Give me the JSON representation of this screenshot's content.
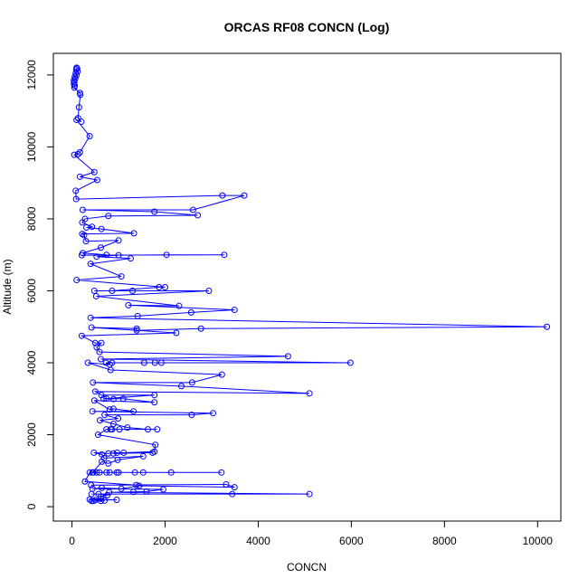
{
  "chart_data": {
    "type": "line",
    "title": "ORCAS RF08 CONCN (Log)",
    "xlabel": "CONCN",
    "ylabel": "Altitude (m)",
    "xlim": [
      -400,
      10500
    ],
    "ylim": [
      -400,
      12600
    ],
    "x_ticks": [
      0,
      2000,
      4000,
      6000,
      8000,
      10000
    ],
    "y_ticks": [
      0,
      2000,
      4000,
      6000,
      8000,
      10000,
      12000
    ],
    "grid": false,
    "legend": "none",
    "markers": "open circles",
    "series_color": "#0000ff",
    "series": [
      {
        "points": [
          [
            100,
            12200
          ],
          [
            110,
            12180
          ],
          [
            90,
            12150
          ],
          [
            120,
            12100
          ],
          [
            80,
            12050
          ],
          [
            100,
            12000
          ],
          [
            60,
            11950
          ],
          [
            70,
            11900
          ],
          [
            40,
            11850
          ],
          [
            50,
            11800
          ],
          [
            40,
            11750
          ],
          [
            60,
            11700
          ],
          [
            50,
            11650
          ],
          [
            170,
            11500
          ],
          [
            180,
            11450
          ],
          [
            150,
            11100
          ],
          [
            130,
            10800
          ],
          [
            200,
            10700
          ],
          [
            100,
            10750
          ],
          [
            380,
            10300
          ],
          [
            170,
            9850
          ],
          [
            130,
            9800
          ],
          [
            50,
            9780
          ],
          [
            480,
            9300
          ],
          [
            170,
            9170
          ],
          [
            540,
            9080
          ],
          [
            80,
            8780
          ],
          [
            90,
            8550
          ],
          [
            3230,
            8650
          ],
          [
            3700,
            8650
          ],
          [
            2600,
            8250
          ],
          [
            230,
            8250
          ],
          [
            1770,
            8200
          ],
          [
            2700,
            8100
          ],
          [
            780,
            8080
          ],
          [
            280,
            8000
          ],
          [
            220,
            7900
          ],
          [
            430,
            7780
          ],
          [
            310,
            7760
          ],
          [
            630,
            7720
          ],
          [
            1330,
            7600
          ],
          [
            220,
            7580
          ],
          [
            260,
            7550
          ],
          [
            300,
            7380
          ],
          [
            1000,
            7400
          ],
          [
            620,
            7200
          ],
          [
            230,
            7050
          ],
          [
            740,
            7000
          ],
          [
            210,
            6990
          ],
          [
            3270,
            7000
          ],
          [
            2030,
            7000
          ],
          [
            1000,
            6990
          ],
          [
            530,
            6950
          ],
          [
            1260,
            6900
          ],
          [
            400,
            6750
          ],
          [
            1060,
            6400
          ],
          [
            100,
            6300
          ],
          [
            2000,
            6100
          ],
          [
            1870,
            6100
          ],
          [
            860,
            6000
          ],
          [
            480,
            6000
          ],
          [
            1300,
            6000
          ],
          [
            2940,
            6000
          ],
          [
            520,
            5850
          ],
          [
            2300,
            5580
          ],
          [
            1210,
            5600
          ],
          [
            3490,
            5470
          ],
          [
            2560,
            5400
          ],
          [
            1410,
            5300
          ],
          [
            400,
            5250
          ],
          [
            10200,
            5000
          ],
          [
            2770,
            4950
          ],
          [
            1390,
            4900
          ],
          [
            1390,
            4950
          ],
          [
            420,
            4980
          ],
          [
            2240,
            4830
          ],
          [
            210,
            4750
          ],
          [
            500,
            4550
          ],
          [
            630,
            4550
          ],
          [
            530,
            4430
          ],
          [
            590,
            4300
          ],
          [
            4640,
            4180
          ],
          [
            620,
            4100
          ],
          [
            5980,
            4000
          ],
          [
            1920,
            4000
          ],
          [
            1550,
            4000
          ],
          [
            1780,
            4000
          ],
          [
            860,
            4000
          ],
          [
            730,
            4000
          ],
          [
            810,
            3950
          ],
          [
            340,
            4000
          ],
          [
            830,
            3800
          ],
          [
            3220,
            3670
          ],
          [
            2580,
            3450
          ],
          [
            450,
            3450
          ],
          [
            2350,
            3350
          ],
          [
            5100,
            3150
          ],
          [
            500,
            3200
          ],
          [
            630,
            3100
          ],
          [
            1770,
            3100
          ],
          [
            680,
            3000
          ],
          [
            890,
            2990
          ],
          [
            740,
            3000
          ],
          [
            1100,
            3000
          ],
          [
            1770,
            2900
          ],
          [
            480,
            2950
          ],
          [
            810,
            2700
          ],
          [
            890,
            2720
          ],
          [
            1320,
            2650
          ],
          [
            440,
            2650
          ],
          [
            3030,
            2600
          ],
          [
            2570,
            2550
          ],
          [
            700,
            2550
          ],
          [
            990,
            2450
          ],
          [
            600,
            2400
          ],
          [
            890,
            2300
          ],
          [
            1190,
            2200
          ],
          [
            1630,
            2150
          ],
          [
            1830,
            2150
          ],
          [
            1020,
            2150
          ],
          [
            860,
            2150
          ],
          [
            830,
            2150
          ],
          [
            740,
            2150
          ],
          [
            560,
            2000
          ],
          [
            1790,
            1720
          ],
          [
            1770,
            1530
          ],
          [
            1110,
            1500
          ],
          [
            890,
            1480
          ],
          [
            1730,
            1500
          ],
          [
            970,
            1500
          ],
          [
            780,
            1480
          ],
          [
            470,
            1500
          ],
          [
            640,
            1450
          ],
          [
            690,
            1350
          ],
          [
            1530,
            1400
          ],
          [
            980,
            1300
          ],
          [
            780,
            1200
          ],
          [
            640,
            1250
          ],
          [
            440,
            950
          ],
          [
            3210,
            950
          ],
          [
            2130,
            950
          ],
          [
            1530,
            950
          ],
          [
            810,
            950
          ],
          [
            740,
            950
          ],
          [
            960,
            950
          ],
          [
            590,
            950
          ],
          [
            530,
            950
          ],
          [
            1350,
            950
          ],
          [
            1000,
            950
          ],
          [
            460,
            950
          ],
          [
            380,
            950
          ],
          [
            280,
            700
          ],
          [
            1380,
            600
          ],
          [
            410,
            600
          ],
          [
            3310,
            620
          ],
          [
            3490,
            540
          ],
          [
            1440,
            580
          ],
          [
            1060,
            500
          ],
          [
            640,
            520
          ],
          [
            440,
            500
          ],
          [
            1960,
            480
          ],
          [
            1600,
            420
          ],
          [
            1320,
            410
          ],
          [
            800,
            400
          ],
          [
            5100,
            350
          ],
          [
            3440,
            350
          ],
          [
            420,
            350
          ],
          [
            570,
            350
          ],
          [
            760,
            320
          ],
          [
            620,
            280
          ],
          [
            620,
            220
          ],
          [
            380,
            200
          ],
          [
            960,
            190
          ],
          [
            500,
            180
          ],
          [
            700,
            170
          ],
          [
            460,
            160
          ],
          [
            420,
            160
          ],
          [
            620,
            160
          ]
        ]
      }
    ]
  }
}
